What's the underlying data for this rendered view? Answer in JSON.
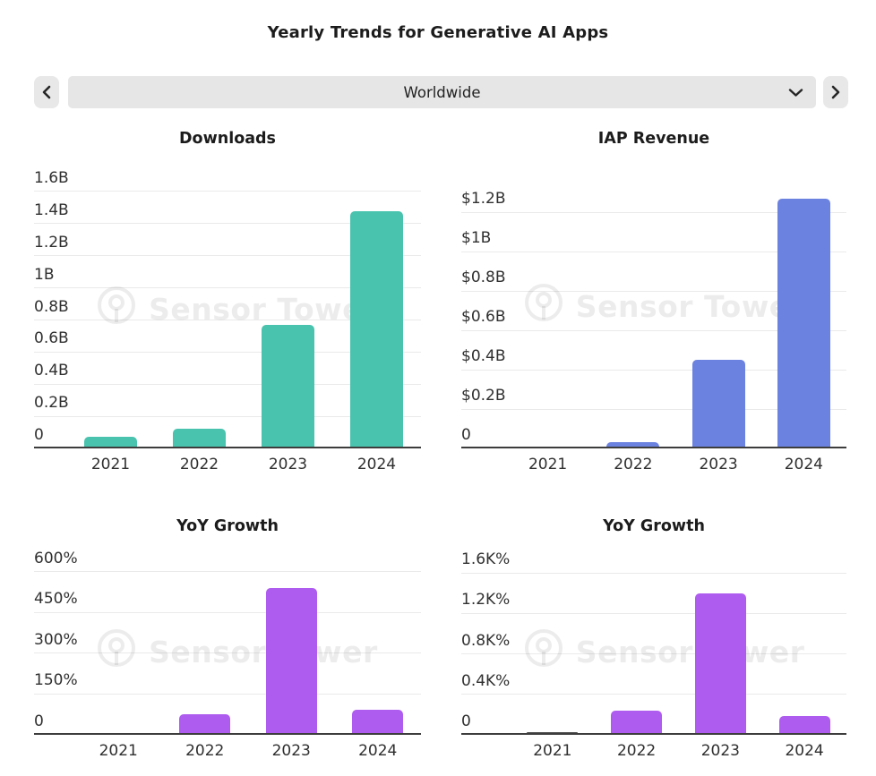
{
  "header": {
    "title": "Yearly Trends for Generative AI Apps"
  },
  "selector": {
    "value": "Worldwide",
    "prev_icon": "chevron-left",
    "next_icon": "chevron-right",
    "caret_icon": "chevron-down"
  },
  "watermark": {
    "text": "Sensor Tower"
  },
  "chart_data": [
    {
      "id": "downloads",
      "type": "bar",
      "title": "Downloads",
      "categories": [
        "2021",
        "2022",
        "2023",
        "2024"
      ],
      "values": [
        0.07,
        0.12,
        0.77,
        1.48
      ],
      "unit": "billions of downloads",
      "bar_color": "#49c3ae",
      "yticks": [
        {
          "label": "1.6B",
          "value": 1.6
        },
        {
          "label": "1.4B",
          "value": 1.4
        },
        {
          "label": "1.2B",
          "value": 1.2
        },
        {
          "label": "1B",
          "value": 1.0
        },
        {
          "label": "0.8B",
          "value": 0.8
        },
        {
          "label": "0.6B",
          "value": 0.6
        },
        {
          "label": "0.4B",
          "value": 0.4
        },
        {
          "label": "0.2B",
          "value": 0.2
        },
        {
          "label": "0",
          "value": 0
        }
      ],
      "ylim": [
        0,
        1.65
      ],
      "grid": true,
      "legend": "none"
    },
    {
      "id": "iap_revenue",
      "type": "bar",
      "title": "IAP Revenue",
      "categories": [
        "2021",
        "2022",
        "2023",
        "2024"
      ],
      "values": [
        0.01,
        0.03,
        0.45,
        1.27
      ],
      "unit": "billions USD",
      "bar_color": "#6c82e0",
      "yticks": [
        {
          "label": "$1.2B",
          "value": 1.2
        },
        {
          "label": "$1B",
          "value": 1.0
        },
        {
          "label": "$0.8B",
          "value": 0.8
        },
        {
          "label": "$0.6B",
          "value": 0.6
        },
        {
          "label": "$0.4B",
          "value": 0.4
        },
        {
          "label": "$0.2B",
          "value": 0.2
        },
        {
          "label": "0",
          "value": 0
        }
      ],
      "ylim": [
        0,
        1.37
      ],
      "grid": true,
      "legend": "none"
    },
    {
      "id": "yoy_growth_downloads",
      "type": "bar",
      "title": "YoY Growth",
      "categories": [
        "2021",
        "2022",
        "2023",
        "2024"
      ],
      "values": [
        6,
        76,
        540,
        92
      ],
      "unit": "percent",
      "bar_color": "#ae5cf0",
      "colors": [
        "#4f4f4f",
        "#ae5cf0",
        "#ae5cf0",
        "#ae5cf0"
      ],
      "yticks": [
        {
          "label": "600%",
          "value": 600
        },
        {
          "label": "450%",
          "value": 450
        },
        {
          "label": "300%",
          "value": 300
        },
        {
          "label": "150%",
          "value": 150
        },
        {
          "label": "0",
          "value": 0
        }
      ],
      "ylim": [
        0,
        636
      ],
      "grid": true,
      "legend": "none"
    },
    {
      "id": "yoy_growth_revenue",
      "type": "bar",
      "title": "YoY Growth",
      "categories": [
        "2021",
        "2022",
        "2023",
        "2024"
      ],
      "values": [
        25,
        235,
        1400,
        185
      ],
      "unit": "percent",
      "bar_color": "#ae5cf0",
      "colors": [
        "#4f4f4f",
        "#ae5cf0",
        "#ae5cf0",
        "#ae5cf0"
      ],
      "yticks": [
        {
          "label": "1.6K%",
          "value": 1600
        },
        {
          "label": "1.2K%",
          "value": 1200
        },
        {
          "label": "0.8K%",
          "value": 800
        },
        {
          "label": "0.4K%",
          "value": 400
        },
        {
          "label": "0",
          "value": 0
        }
      ],
      "ylim": [
        0,
        1707
      ],
      "grid": true,
      "legend": "none"
    }
  ]
}
